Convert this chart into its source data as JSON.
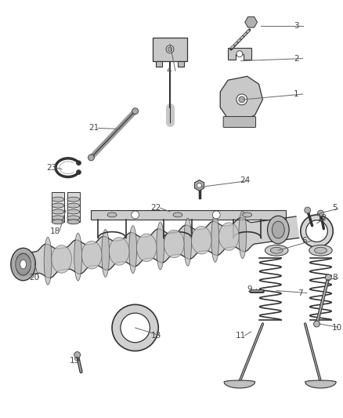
{
  "background_color": "#ffffff",
  "figsize": [
    4.38,
    5.33
  ],
  "dpi": 100,
  "label_color": "#444444",
  "line_color": "#666666",
  "part_color": "#c8c8c8",
  "part_edge": "#333333",
  "dark": "#222222"
}
